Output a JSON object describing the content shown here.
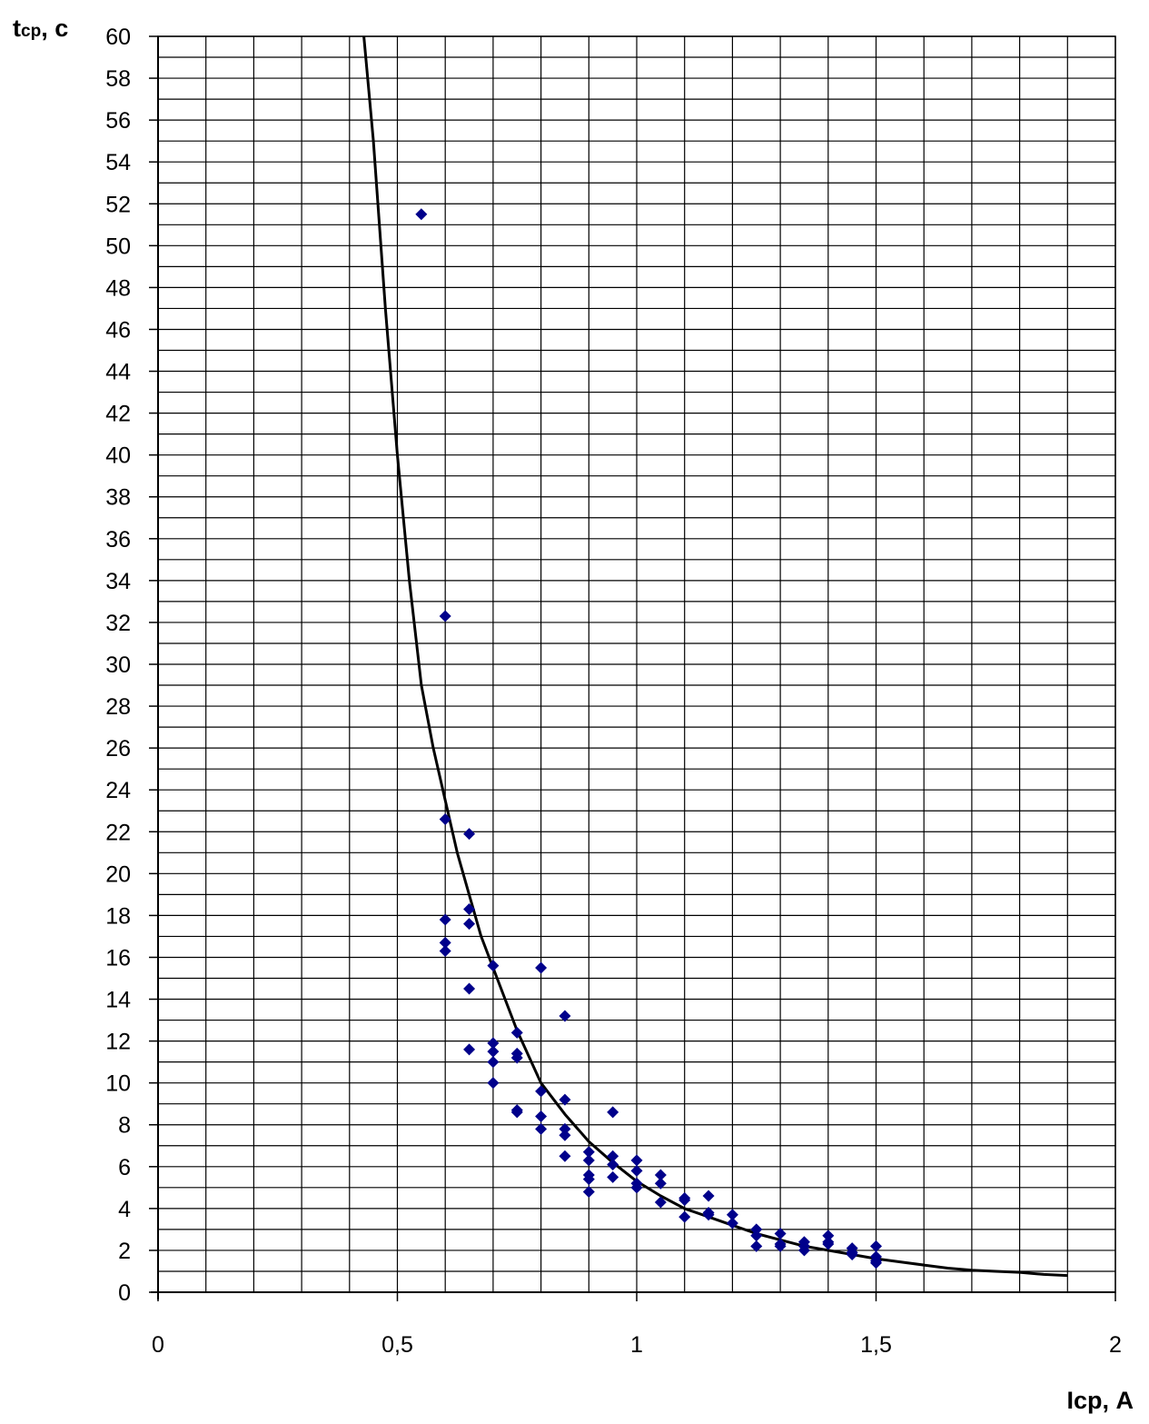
{
  "chart_data": {
    "type": "scatter",
    "title": "",
    "xlabel_main": "Iср, А",
    "ylabel_main": "t",
    "ylabel_sub": "ср",
    "ylabel_tail": ", с",
    "xlim": [
      0,
      2
    ],
    "ylim": [
      0,
      60
    ],
    "x_major_step": 0.5,
    "x_grid_step": 0.1,
    "y_major_step": 2,
    "y_grid_step": 1,
    "x_tick_labels": [
      "0",
      "0,5",
      "1",
      "1,5",
      "2"
    ],
    "y_tick_labels": [
      "0",
      "2",
      "4",
      "6",
      "8",
      "10",
      "12",
      "14",
      "16",
      "18",
      "20",
      "22",
      "24",
      "26",
      "28",
      "30",
      "32",
      "34",
      "36",
      "38",
      "40",
      "42",
      "44",
      "46",
      "48",
      "50",
      "52",
      "54",
      "56",
      "58",
      "60"
    ],
    "grid": true,
    "legend": "none",
    "colors": {
      "points": "#00008b",
      "curve": "#000000",
      "grid": "#000000"
    },
    "series": [
      {
        "kind": "scatter",
        "marker": "diamond",
        "points": [
          [
            0.55,
            51.5
          ],
          [
            0.6,
            32.3
          ],
          [
            0.6,
            22.6
          ],
          [
            0.6,
            17.8
          ],
          [
            0.6,
            16.7
          ],
          [
            0.6,
            16.3
          ],
          [
            0.65,
            21.9
          ],
          [
            0.65,
            18.3
          ],
          [
            0.65,
            17.6
          ],
          [
            0.65,
            14.5
          ],
          [
            0.65,
            11.6
          ],
          [
            0.7,
            15.6
          ],
          [
            0.7,
            11.9
          ],
          [
            0.7,
            11.5
          ],
          [
            0.7,
            11.0
          ],
          [
            0.7,
            10.0
          ],
          [
            0.75,
            12.4
          ],
          [
            0.75,
            11.4
          ],
          [
            0.75,
            11.2
          ],
          [
            0.75,
            8.7
          ],
          [
            0.75,
            8.6
          ],
          [
            0.8,
            15.5
          ],
          [
            0.8,
            9.6
          ],
          [
            0.8,
            8.4
          ],
          [
            0.8,
            7.8
          ],
          [
            0.85,
            13.2
          ],
          [
            0.85,
            9.2
          ],
          [
            0.85,
            7.8
          ],
          [
            0.85,
            7.5
          ],
          [
            0.85,
            6.5
          ],
          [
            0.9,
            6.7
          ],
          [
            0.9,
            6.3
          ],
          [
            0.9,
            5.6
          ],
          [
            0.9,
            5.4
          ],
          [
            0.9,
            4.8
          ],
          [
            0.95,
            8.6
          ],
          [
            0.95,
            6.5
          ],
          [
            0.95,
            6.1
          ],
          [
            0.95,
            5.5
          ],
          [
            1.0,
            6.3
          ],
          [
            1.0,
            5.8
          ],
          [
            1.0,
            5.2
          ],
          [
            1.0,
            5.0
          ],
          [
            1.05,
            5.6
          ],
          [
            1.05,
            5.2
          ],
          [
            1.05,
            4.3
          ],
          [
            1.1,
            4.5
          ],
          [
            1.1,
            4.4
          ],
          [
            1.1,
            3.6
          ],
          [
            1.15,
            4.6
          ],
          [
            1.15,
            3.8
          ],
          [
            1.15,
            3.7
          ],
          [
            1.2,
            3.7
          ],
          [
            1.2,
            3.3
          ],
          [
            1.25,
            3.0
          ],
          [
            1.25,
            2.7
          ],
          [
            1.25,
            2.2
          ],
          [
            1.3,
            2.8
          ],
          [
            1.3,
            2.3
          ],
          [
            1.3,
            2.2
          ],
          [
            1.35,
            2.4
          ],
          [
            1.35,
            2.2
          ],
          [
            1.35,
            2.0
          ],
          [
            1.4,
            2.7
          ],
          [
            1.4,
            2.4
          ],
          [
            1.4,
            2.3
          ],
          [
            1.45,
            2.1
          ],
          [
            1.45,
            1.9
          ],
          [
            1.45,
            1.8
          ],
          [
            1.5,
            2.2
          ],
          [
            1.5,
            1.7
          ],
          [
            1.5,
            1.5
          ],
          [
            1.5,
            1.4
          ]
        ]
      },
      {
        "kind": "line",
        "points": [
          [
            0.43,
            60.0
          ],
          [
            0.45,
            55.0
          ],
          [
            0.475,
            47.0
          ],
          [
            0.5,
            40.0
          ],
          [
            0.525,
            34.0
          ],
          [
            0.55,
            29.0
          ],
          [
            0.575,
            26.0
          ],
          [
            0.6,
            23.5
          ],
          [
            0.625,
            21.0
          ],
          [
            0.65,
            19.0
          ],
          [
            0.675,
            17.0
          ],
          [
            0.7,
            15.5
          ],
          [
            0.75,
            12.5
          ],
          [
            0.8,
            10.0
          ],
          [
            0.85,
            8.5
          ],
          [
            0.9,
            7.2
          ],
          [
            0.95,
            6.2
          ],
          [
            1.0,
            5.3
          ],
          [
            1.05,
            4.6
          ],
          [
            1.1,
            4.0
          ],
          [
            1.15,
            3.6
          ],
          [
            1.2,
            3.2
          ],
          [
            1.25,
            2.8
          ],
          [
            1.3,
            2.5
          ],
          [
            1.35,
            2.2
          ],
          [
            1.4,
            2.0
          ],
          [
            1.45,
            1.8
          ],
          [
            1.5,
            1.6
          ],
          [
            1.55,
            1.45
          ],
          [
            1.6,
            1.3
          ],
          [
            1.65,
            1.15
          ],
          [
            1.7,
            1.05
          ],
          [
            1.75,
            1.0
          ],
          [
            1.8,
            0.95
          ],
          [
            1.85,
            0.85
          ],
          [
            1.9,
            0.8
          ]
        ]
      }
    ]
  }
}
